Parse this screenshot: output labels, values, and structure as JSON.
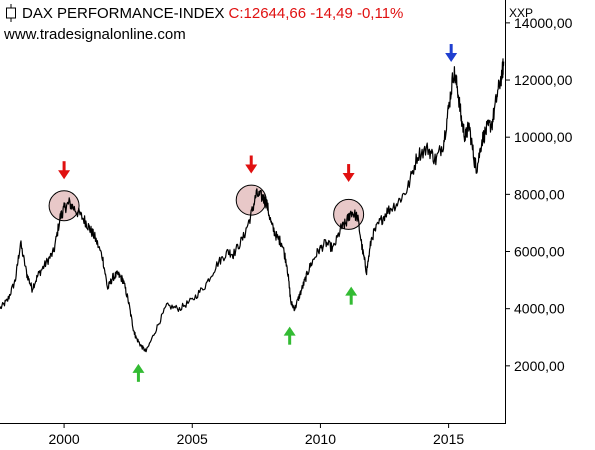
{
  "header": {
    "title": "DAX PERFORMANCE-INDEX",
    "quote": "C:12644,66 -14,49 -0,11%",
    "website": "www.tradesignalonline.com",
    "unit_label": "XXP"
  },
  "colors": {
    "series": "#000000",
    "quote": "#e01010",
    "arrow_top": "#e01010",
    "arrow_bottom": "#33bb33",
    "arrow_peak": "#1f3fd0",
    "circle_fill": "#e8c8c8"
  },
  "chart_data": {
    "type": "line",
    "title": "DAX PERFORMANCE-INDEX",
    "xlim": [
      1997.5,
      2017.2
    ],
    "ylim": [
      0,
      14800
    ],
    "x_ticks": [
      2000,
      2005,
      2010,
      2015
    ],
    "x_tick_labels": [
      "2000",
      "2005",
      "2010",
      "2015"
    ],
    "y_ticks": [
      2000,
      4000,
      6000,
      8000,
      10000,
      12000,
      14000
    ],
    "y_tick_labels": [
      "2000,00",
      "4000,00",
      "6000,00",
      "8000,00",
      "10000,00",
      "12000,00",
      "14000,00"
    ],
    "grid": false,
    "series": [
      {
        "x": [
          1997.5,
          1997.8,
          1998.1,
          1998.3,
          1998.55,
          1998.75,
          1999.0,
          1999.3,
          1999.6,
          1999.85,
          2000.0,
          2000.2,
          2000.5,
          2000.8,
          2001.0,
          2001.2,
          2001.5,
          2001.7,
          2001.9,
          2002.1,
          2002.3,
          2002.5,
          2002.7,
          2002.8,
          2003.0,
          2003.2,
          2003.6,
          2004.0,
          2004.5,
          2005.0,
          2005.5,
          2006.0,
          2006.4,
          2006.6,
          2007.0,
          2007.3,
          2007.5,
          2007.75,
          2007.9,
          2008.1,
          2008.3,
          2008.5,
          2008.7,
          2008.85,
          2009.0,
          2009.2,
          2009.4,
          2009.6,
          2009.9,
          2010.2,
          2010.5,
          2010.8,
          2011.0,
          2011.2,
          2011.45,
          2011.65,
          2011.8,
          2012.0,
          2012.3,
          2012.6,
          2013.0,
          2013.4,
          2013.8,
          2014.2,
          2014.5,
          2014.8,
          2015.0,
          2015.2,
          2015.35,
          2015.5,
          2015.65,
          2015.8,
          2016.0,
          2016.1,
          2016.3,
          2016.5,
          2016.7,
          2016.9,
          2017.1,
          2017.15
        ],
        "y": [
          4000,
          4300,
          5000,
          6300,
          5200,
          4700,
          5200,
          5600,
          6000,
          7200,
          7500,
          7700,
          7400,
          7100,
          6800,
          6500,
          5800,
          4700,
          5100,
          5200,
          5000,
          4300,
          3300,
          3000,
          2700,
          2500,
          3300,
          4100,
          4000,
          4300,
          4800,
          5600,
          6000,
          5900,
          6500,
          7300,
          8000,
          7900,
          7700,
          6900,
          6500,
          6300,
          5500,
          4200,
          4000,
          4500,
          5000,
          5500,
          6000,
          6300,
          6100,
          6800,
          7000,
          7400,
          7200,
          6000,
          5300,
          6500,
          7000,
          7400,
          7700,
          8200,
          9400,
          9600,
          9200,
          9800,
          11000,
          12300,
          11700,
          10600,
          10000,
          10400,
          9200,
          8900,
          9900,
          10300,
          10500,
          11500,
          12300,
          12645
        ]
      }
    ],
    "annotations": [
      {
        "type": "arrow-down",
        "x": 2000.0,
        "y": 8600,
        "color": "red"
      },
      {
        "type": "arrow-down",
        "x": 2007.3,
        "y": 8800,
        "color": "red"
      },
      {
        "type": "arrow-down",
        "x": 2011.1,
        "y": 8500,
        "color": "red"
      },
      {
        "type": "arrow-down",
        "x": 2015.1,
        "y": 12700,
        "color": "blue"
      },
      {
        "type": "arrow-up",
        "x": 2002.9,
        "y": 2000,
        "color": "green"
      },
      {
        "type": "arrow-up",
        "x": 2008.8,
        "y": 3300,
        "color": "green"
      },
      {
        "type": "arrow-up",
        "x": 2011.2,
        "y": 4700,
        "color": "green"
      },
      {
        "type": "circle",
        "x": 2000.0,
        "y": 7600
      },
      {
        "type": "circle",
        "x": 2007.3,
        "y": 7800
      },
      {
        "type": "circle",
        "x": 2011.1,
        "y": 7300
      }
    ]
  }
}
